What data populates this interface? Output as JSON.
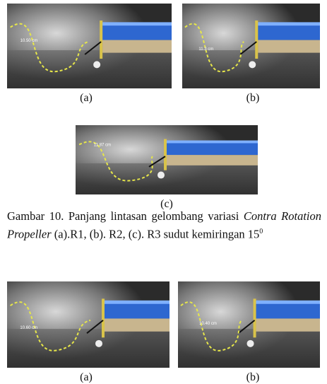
{
  "figure_top": {
    "panels": [
      {
        "photo_label": "10.50 cm",
        "caption": "(a)"
      },
      {
        "photo_label": "11.3 cm",
        "caption": "(b)"
      },
      {
        "photo_label": "11.87 cm",
        "caption": "(c)"
      }
    ],
    "caption": {
      "prefix": "Gambar 10. Panjang lintasan gelombang variasi",
      "italic": "Contra Rotation Propeller",
      "suffix": "(a).R1, (b). R2, (c). R3 sudut kemiringan 15",
      "superscript": "0"
    }
  },
  "figure_bottom": {
    "panels": [
      {
        "photo_label": "10.60 cm",
        "caption": "(a)"
      },
      {
        "photo_label": "10.40 cm",
        "caption": "(b)"
      }
    ]
  }
}
